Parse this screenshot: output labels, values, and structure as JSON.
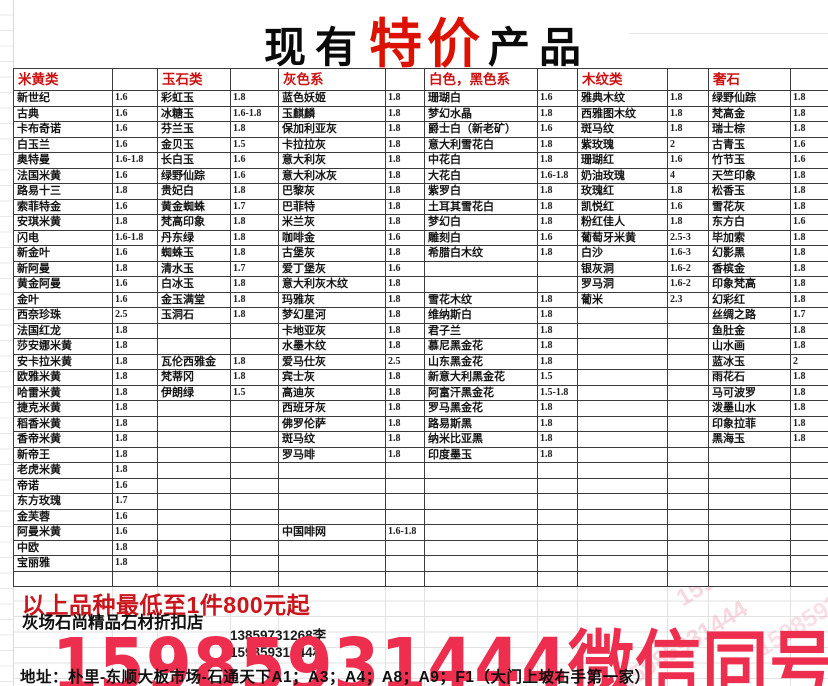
{
  "title": {
    "part1": "现有",
    "part2": "特价",
    "part3": "产品"
  },
  "table": {
    "groups": [
      {
        "header": "米黄类",
        "rows": [
          [
            "新世纪",
            "1.6"
          ],
          [
            "古典",
            "1.6"
          ],
          [
            "卡布奇诺",
            "1.6"
          ],
          [
            "白玉兰",
            "1.6"
          ],
          [
            "奥特曼",
            "1.6-1.8"
          ],
          [
            "法国米黄",
            "1.6"
          ],
          [
            "路易十三",
            "1.8"
          ],
          [
            "索菲特金",
            "1.6"
          ],
          [
            "安琪米黄",
            "1.8"
          ],
          [
            "闪电",
            "1.6-1.8"
          ],
          [
            "新金叶",
            "1.6"
          ],
          [
            "新阿曼",
            "1.8"
          ],
          [
            "黄金阿曼",
            "1.6"
          ],
          [
            "金叶",
            "1.6"
          ],
          [
            "西奈珍珠",
            "2.5"
          ],
          [
            "法国红龙",
            "1.8"
          ],
          [
            "莎安娜米黄",
            "1.8"
          ],
          [
            "安卡拉米黄",
            "1.8"
          ],
          [
            "欧雅米黄",
            "1.8"
          ],
          [
            "哈雷米黄",
            "1.8"
          ],
          [
            "捷克米黄",
            "1.8"
          ],
          [
            "稻香米黄",
            "1.8"
          ],
          [
            "香帝米黄",
            "1.8"
          ],
          [
            "新帝王",
            "1.8"
          ],
          [
            "老虎米黄",
            "1.8"
          ],
          [
            "帝诺",
            "1.6"
          ],
          [
            "东方玫瑰",
            "1.7"
          ],
          [
            "金芙蓉",
            "1.6"
          ],
          [
            "阿曼米黄",
            "1.6"
          ],
          [
            "中欧",
            "1.8"
          ],
          [
            "宝丽雅",
            "1.8"
          ],
          [
            "",
            ""
          ]
        ]
      },
      {
        "header": "玉石类",
        "rows": [
          [
            "彩虹玉",
            "1.8"
          ],
          [
            "冰糖玉",
            "1.6-1.8"
          ],
          [
            "芬兰玉",
            "1.8"
          ],
          [
            "金贝玉",
            "1.5"
          ],
          [
            "长白玉",
            "1.6"
          ],
          [
            "绿野仙踪",
            "1.6"
          ],
          [
            "贵妃白",
            "1.8"
          ],
          [
            "黄金蜘蛛",
            "1.7"
          ],
          [
            "梵高印象",
            "1.8"
          ],
          [
            "丹东绿",
            "1.8"
          ],
          [
            "蜘蛛玉",
            "1.8"
          ],
          [
            "清水玉",
            "1.7"
          ],
          [
            "白冰玉",
            "1.8"
          ],
          [
            "金玉满堂",
            "1.8"
          ],
          [
            "玉洞石",
            "1.8"
          ],
          [
            "",
            ""
          ],
          [
            "",
            ""
          ],
          [
            "瓦伦西雅金",
            "1.8"
          ],
          [
            "梵蒂冈",
            "1.8"
          ],
          [
            "伊朗绿",
            "1.5"
          ],
          [
            "",
            ""
          ],
          [
            "",
            ""
          ],
          [
            "",
            ""
          ],
          [
            "",
            ""
          ],
          [
            "",
            ""
          ],
          [
            "",
            ""
          ],
          [
            "",
            ""
          ],
          [
            "",
            ""
          ],
          [
            "",
            ""
          ],
          [
            "",
            ""
          ],
          [
            "",
            ""
          ],
          [
            "",
            ""
          ]
        ]
      },
      {
        "header": "灰色系",
        "rows": [
          [
            "蓝色妖姬",
            "1.8"
          ],
          [
            "玉麒麟",
            "1.8"
          ],
          [
            "保加利亚灰",
            "1.8"
          ],
          [
            "卡拉拉灰",
            "1.8"
          ],
          [
            "意大利灰",
            "1.8"
          ],
          [
            "意大利冰灰",
            "1.8"
          ],
          [
            "巴黎灰",
            "1.8"
          ],
          [
            "巴菲特",
            "1.8"
          ],
          [
            "米兰灰",
            "1.8"
          ],
          [
            "咖啡金",
            "1.6"
          ],
          [
            "古堡灰",
            "1.8"
          ],
          [
            "爱丁堡灰",
            "1.6"
          ],
          [
            "意大利灰木纹",
            "1.8"
          ],
          [
            "玛雅灰",
            "1.8"
          ],
          [
            "梦幻星河",
            "1.8"
          ],
          [
            "卡地亚灰",
            "1.8"
          ],
          [
            "水墨木纹",
            "1.8"
          ],
          [
            "爱马仕灰",
            "2.5"
          ],
          [
            "宾士灰",
            "1.8"
          ],
          [
            "高迪灰",
            "1.8"
          ],
          [
            "西班牙灰",
            "1.8"
          ],
          [
            "佛罗伦萨",
            "1.8"
          ],
          [
            "斑马纹",
            "1.8"
          ],
          [
            "罗马啡",
            "1.8"
          ],
          [
            "",
            ""
          ],
          [
            "",
            ""
          ],
          [
            "",
            ""
          ],
          [
            "",
            ""
          ],
          [
            "中国啡网",
            "1.6-1.8"
          ],
          [
            "",
            ""
          ],
          [
            "",
            ""
          ],
          [
            "",
            ""
          ]
        ]
      },
      {
        "header": "白色，黑色系",
        "rows": [
          [
            "珊瑚白",
            "1.6"
          ],
          [
            "梦幻水晶",
            "1.8"
          ],
          [
            "爵士白（新老矿）",
            "1.6"
          ],
          [
            "意大利雪花白",
            "1.8"
          ],
          [
            "中花白",
            "1.8"
          ],
          [
            "大花白",
            "1.6-1.8"
          ],
          [
            "紫罗白",
            "1.8"
          ],
          [
            "土耳其雪花白",
            "1.8"
          ],
          [
            "梦幻白",
            "1.8"
          ],
          [
            "雕刻白",
            "1.6"
          ],
          [
            "希腊白木纹",
            "1.8"
          ],
          [
            "",
            ""
          ],
          [
            "",
            ""
          ],
          [
            "雪花木纹",
            "1.8"
          ],
          [
            "维纳斯白",
            "1.8"
          ],
          [
            "君子兰",
            "1.8"
          ],
          [
            "慕尼黑金花",
            "1.8"
          ],
          [
            "山东黑金花",
            "1.8"
          ],
          [
            "新意大利黑金花",
            "1.5"
          ],
          [
            "阿富汗黑金花",
            "1.5-1.8"
          ],
          [
            "罗马黑金花",
            "1.8"
          ],
          [
            "路易斯黑",
            "1.8"
          ],
          [
            "纳米比亚黑",
            "1.8"
          ],
          [
            "印度墨玉",
            "1.8"
          ],
          [
            "",
            ""
          ],
          [
            "",
            ""
          ],
          [
            "",
            ""
          ],
          [
            "",
            ""
          ],
          [
            "",
            ""
          ],
          [
            "",
            ""
          ],
          [
            "",
            ""
          ],
          [
            "",
            ""
          ]
        ]
      },
      {
        "header": "木纹类",
        "rows": [
          [
            "雅典木纹",
            "1.8"
          ],
          [
            "西雅图木纹",
            "1.8"
          ],
          [
            "斑马纹",
            "1.8"
          ],
          [
            "紫玫瑰",
            "2"
          ],
          [
            "珊瑚红",
            "1.6"
          ],
          [
            "奶油玫瑰",
            "4"
          ],
          [
            "玫瑰红",
            "1.8"
          ],
          [
            "凯悦红",
            "1.6"
          ],
          [
            "粉红佳人",
            "1.8"
          ],
          [
            "葡萄牙米黄",
            "2.5-3"
          ],
          [
            "白沙",
            "1.6-3"
          ],
          [
            "银灰洞",
            "1.6-2"
          ],
          [
            "罗马洞",
            "1.6-2"
          ],
          [
            "葡米",
            "2.3"
          ],
          [
            "",
            ""
          ],
          [
            "",
            ""
          ],
          [
            "",
            ""
          ],
          [
            "",
            ""
          ],
          [
            "",
            ""
          ],
          [
            "",
            ""
          ],
          [
            "",
            ""
          ],
          [
            "",
            ""
          ],
          [
            "",
            ""
          ],
          [
            "",
            ""
          ],
          [
            "",
            ""
          ],
          [
            "",
            ""
          ],
          [
            "",
            ""
          ],
          [
            "",
            ""
          ],
          [
            "",
            ""
          ],
          [
            "",
            ""
          ],
          [
            "",
            ""
          ],
          [
            "",
            ""
          ]
        ]
      },
      {
        "header": "奢石",
        "rows": [
          [
            "绿野仙踪",
            "1.8"
          ],
          [
            "梵高金",
            "1.8"
          ],
          [
            "瑞士棕",
            "1.8"
          ],
          [
            "古青玉",
            "1.6"
          ],
          [
            "竹节玉",
            "1.6"
          ],
          [
            "天竺印象",
            "1.8"
          ],
          [
            "松香玉",
            "1.8"
          ],
          [
            "雪花灰",
            "1.8"
          ],
          [
            "东方白",
            "1.6"
          ],
          [
            "毕加索",
            "1.8"
          ],
          [
            "幻影黑",
            "1.8"
          ],
          [
            "香槟金",
            "1.8"
          ],
          [
            "印象梵高",
            "1.8"
          ],
          [
            "幻彩红",
            "1.8"
          ],
          [
            "丝绸之路",
            "1.7"
          ],
          [
            "鱼肚金",
            "1.8"
          ],
          [
            "山水画",
            "1.8"
          ],
          [
            "蓝冰玉",
            "2"
          ],
          [
            "雨花石",
            "1.8"
          ],
          [
            "马可波罗",
            "1.8"
          ],
          [
            "泼墨山水",
            "1.8"
          ],
          [
            "印象拉菲",
            "1.8"
          ],
          [
            "黑海玉",
            "1.8"
          ],
          [
            "",
            ""
          ],
          [
            "",
            ""
          ],
          [
            "",
            ""
          ],
          [
            "",
            ""
          ],
          [
            "",
            ""
          ],
          [
            "",
            ""
          ],
          [
            "",
            ""
          ],
          [
            "",
            ""
          ],
          [
            "",
            ""
          ]
        ]
      }
    ]
  },
  "footer": {
    "promo": "以上品种最低至1件800元起",
    "shop": "灰场石尚精品石材折扣店",
    "contact_li": "13859731268李",
    "contact_lin": "15985931444林",
    "hotline": "15985931444微信同号",
    "address": "地址：朴里-东顺大板市场-石通天下A1；A3；A4；A8；A9；F1（大门上坡右手第一家）",
    "watermark": "15985931444"
  },
  "colors": {
    "header_red": "#cc1111",
    "title_red": "#dd1100",
    "promo_red": "#c9151b",
    "hotline_red": "#ee2e4e",
    "table_border": "#3b3b3b",
    "faint_grid": "#e2e2e2"
  }
}
